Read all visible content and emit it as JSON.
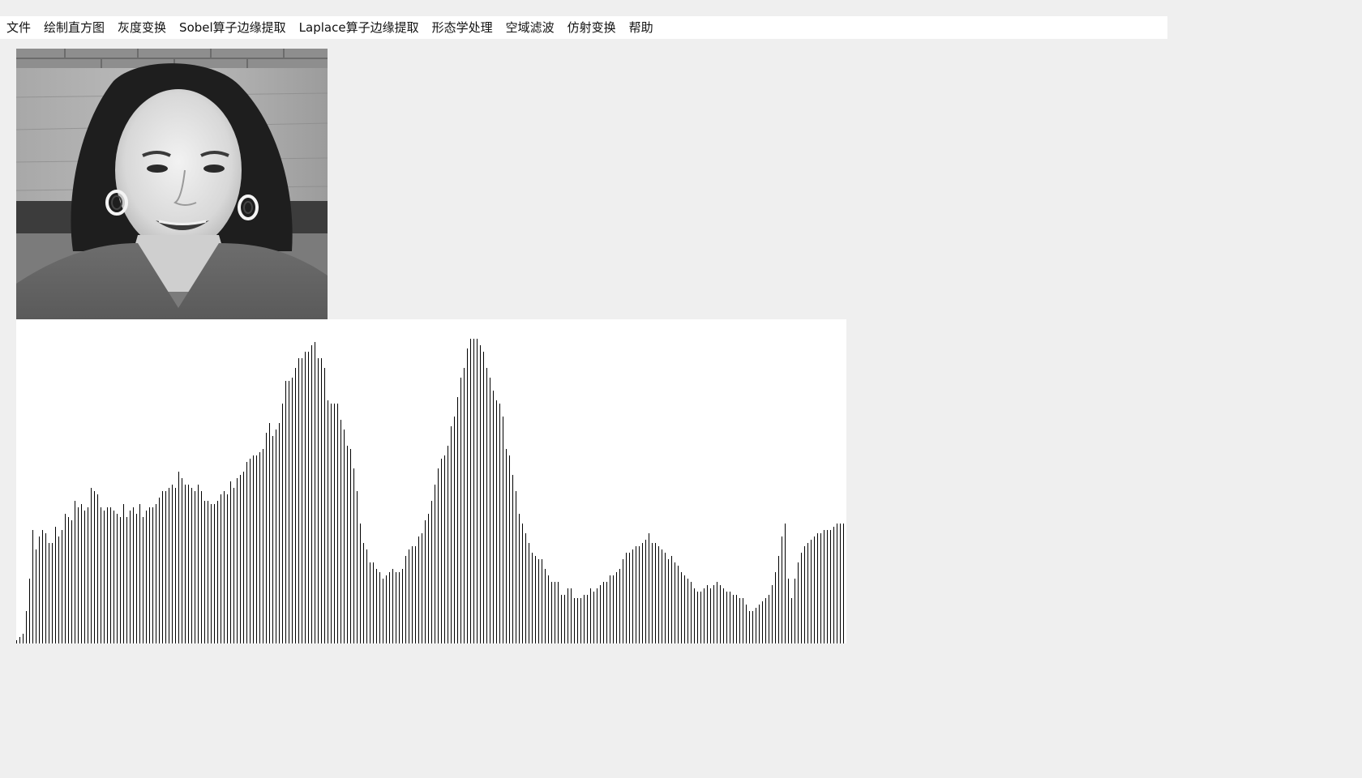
{
  "menu": {
    "items": [
      {
        "label": "文件",
        "name": "menu-file"
      },
      {
        "label": "绘制直方图",
        "name": "menu-draw-histogram"
      },
      {
        "label": "灰度变换",
        "name": "menu-gray-transform"
      },
      {
        "label": "Sobel算子边缘提取",
        "name": "menu-sobel-edge"
      },
      {
        "label": "Laplace算子边缘提取",
        "name": "menu-laplace-edge"
      },
      {
        "label": "形态学处理",
        "name": "menu-morphology"
      },
      {
        "label": "空域滤波",
        "name": "menu-spatial-filter"
      },
      {
        "label": "仿射变换",
        "name": "menu-affine-transform"
      },
      {
        "label": "帮助",
        "name": "menu-help"
      }
    ]
  },
  "image": {
    "description": "grayscale portrait photo"
  },
  "colors": {
    "window_bg": "#efefef",
    "menubar_bg": "#ffffff",
    "histogram_bg": "#ffffff",
    "bar": "#000000"
  },
  "chart_data": {
    "type": "bar",
    "xlabel": "",
    "ylabel": "",
    "xlim": [
      0,
      255
    ],
    "ylim": [
      0,
      1
    ],
    "grid": false,
    "values": [
      0.0,
      0.0,
      0.0,
      0.0,
      0.0,
      0.0,
      0.0,
      0.0,
      0.0,
      0.0,
      0.0,
      0.0,
      0.0,
      0.0,
      0.0,
      0.0,
      0.0,
      0.0,
      0.0,
      0.0,
      0.0,
      0.0,
      0.0,
      0.0,
      0.0,
      0.0,
      0.0,
      0.0,
      0.0,
      0.0,
      0.0,
      0.0,
      0.0,
      0.0,
      0.0,
      0.0,
      0.0,
      0.0,
      0.0,
      0.0,
      0.0,
      0.0,
      0.0,
      0.0,
      0.0,
      0.0,
      0.0,
      0.0,
      0.0,
      0.0,
      0.0,
      0.0,
      0.0,
      0.0,
      0.0,
      0.0,
      0.0,
      0.0,
      0.0,
      0.0,
      0.0,
      0.0,
      0.0,
      0.0,
      0.0,
      0.0,
      0.0,
      0.0,
      0.0,
      0.0,
      0.0,
      0.0,
      0.0,
      0.0,
      0.0,
      0.0,
      0.0,
      0.0,
      0.0,
      0.0,
      0.0,
      0.0,
      0.0,
      0.0,
      0.0,
      0.0,
      0.0,
      0.0,
      0.0,
      0.0,
      0.0,
      0.0,
      0.0,
      0.0,
      0.0,
      0.0,
      0.0,
      0.0,
      0.0,
      0.0,
      0.0,
      0.0,
      0.0,
      0.0,
      0.0,
      0.0,
      0.0,
      0.0,
      0.0,
      0.0,
      0.0,
      0.0,
      0.0,
      0.0,
      0.0,
      0.0,
      0.0,
      0.0,
      0.0,
      0.0,
      0.0,
      0.0,
      0.0,
      0.0,
      0.0,
      0.0,
      0.0,
      0.0
    ],
    "bars": [
      0.01,
      0.02,
      0.03,
      0.1,
      0.2,
      0.35,
      0.29,
      0.33,
      0.35,
      0.34,
      0.31,
      0.31,
      0.36,
      0.33,
      0.35,
      0.4,
      0.39,
      0.38,
      0.44,
      0.42,
      0.43,
      0.41,
      0.42,
      0.48,
      0.47,
      0.46,
      0.42,
      0.41,
      0.42,
      0.42,
      0.41,
      0.4,
      0.39,
      0.43,
      0.39,
      0.41,
      0.42,
      0.4,
      0.43,
      0.39,
      0.41,
      0.42,
      0.42,
      0.43,
      0.45,
      0.47,
      0.47,
      0.48,
      0.49,
      0.48,
      0.53,
      0.51,
      0.49,
      0.49,
      0.48,
      0.47,
      0.49,
      0.47,
      0.44,
      0.44,
      0.43,
      0.43,
      0.44,
      0.46,
      0.47,
      0.46,
      0.5,
      0.48,
      0.51,
      0.52,
      0.53,
      0.56,
      0.57,
      0.58,
      0.58,
      0.59,
      0.6,
      0.65,
      0.68,
      0.64,
      0.66,
      0.68,
      0.74,
      0.81,
      0.81,
      0.82,
      0.85,
      0.88,
      0.88,
      0.9,
      0.9,
      0.92,
      0.93,
      0.88,
      0.88,
      0.85,
      0.75,
      0.74,
      0.74,
      0.74,
      0.69,
      0.66,
      0.61,
      0.6,
      0.54,
      0.47,
      0.37,
      0.31,
      0.29,
      0.25,
      0.25,
      0.23,
      0.22,
      0.2,
      0.21,
      0.22,
      0.23,
      0.22,
      0.22,
      0.23,
      0.27,
      0.29,
      0.3,
      0.3,
      0.33,
      0.34,
      0.38,
      0.4,
      0.44,
      0.49,
      0.54,
      0.57,
      0.58,
      0.61,
      0.67,
      0.7,
      0.76,
      0.82,
      0.85,
      0.91,
      0.94,
      0.94,
      0.94,
      0.92,
      0.9,
      0.85,
      0.82,
      0.78,
      0.75,
      0.74,
      0.7,
      0.6,
      0.58,
      0.52,
      0.47,
      0.4,
      0.37,
      0.34,
      0.31,
      0.28,
      0.27,
      0.26,
      0.26,
      0.23,
      0.21,
      0.19,
      0.19,
      0.19,
      0.15,
      0.15,
      0.17,
      0.17,
      0.14,
      0.14,
      0.14,
      0.15,
      0.15,
      0.17,
      0.16,
      0.17,
      0.18,
      0.19,
      0.19,
      0.21,
      0.21,
      0.22,
      0.23,
      0.26,
      0.28,
      0.28,
      0.29,
      0.3,
      0.3,
      0.31,
      0.32,
      0.34,
      0.31,
      0.31,
      0.3,
      0.29,
      0.28,
      0.26,
      0.27,
      0.25,
      0.24,
      0.22,
      0.21,
      0.2,
      0.19,
      0.17,
      0.16,
      0.16,
      0.17,
      0.18,
      0.17,
      0.18,
      0.19,
      0.18,
      0.17,
      0.16,
      0.16,
      0.15,
      0.15,
      0.14,
      0.14,
      0.12,
      0.1,
      0.1,
      0.11,
      0.12,
      0.13,
      0.14,
      0.15,
      0.18,
      0.22,
      0.27,
      0.33,
      0.37,
      0.2,
      0.14,
      0.2,
      0.25,
      0.28,
      0.3,
      0.31,
      0.32,
      0.33,
      0.34,
      0.34,
      0.35,
      0.35,
      0.35,
      0.36,
      0.37,
      0.37,
      0.37
    ]
  }
}
